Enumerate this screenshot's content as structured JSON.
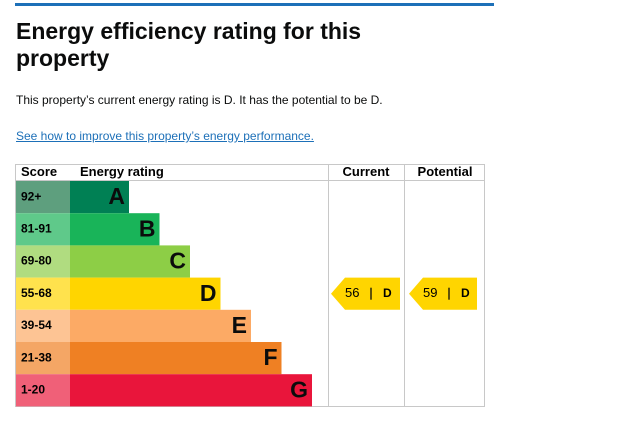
{
  "header": {
    "title": "Energy efficiency rating for this property"
  },
  "summary": "This property’s current energy rating is D. It has the potential to be D.",
  "link": "See how to improve this property’s energy performance.",
  "table": {
    "headers": [
      "Score",
      "Energy rating",
      "Current",
      "Potential"
    ],
    "rows": [
      {
        "score": "92+",
        "band": "A",
        "color": "#008054",
        "tint": "#5e9f7e"
      },
      {
        "score": "81-91",
        "band": "B",
        "color": "#19b459",
        "tint": "#5fc98a"
      },
      {
        "score": "69-80",
        "band": "C",
        "color": "#8dce46",
        "tint": "#b0dc80"
      },
      {
        "score": "55-68",
        "band": "D",
        "color": "#ffd500",
        "tint": "#ffe24d"
      },
      {
        "score": "39-54",
        "band": "E",
        "color": "#fcaa65",
        "tint": "#fdc494"
      },
      {
        "score": "21-38",
        "band": "F",
        "color": "#ef8023",
        "tint": "#f4a665"
      },
      {
        "score": "1-20",
        "band": "G",
        "color": "#e9153b",
        "tint": "#f06078"
      }
    ],
    "current": {
      "value": 56,
      "band": "D"
    },
    "potential": {
      "value": 59,
      "band": "D"
    }
  }
}
